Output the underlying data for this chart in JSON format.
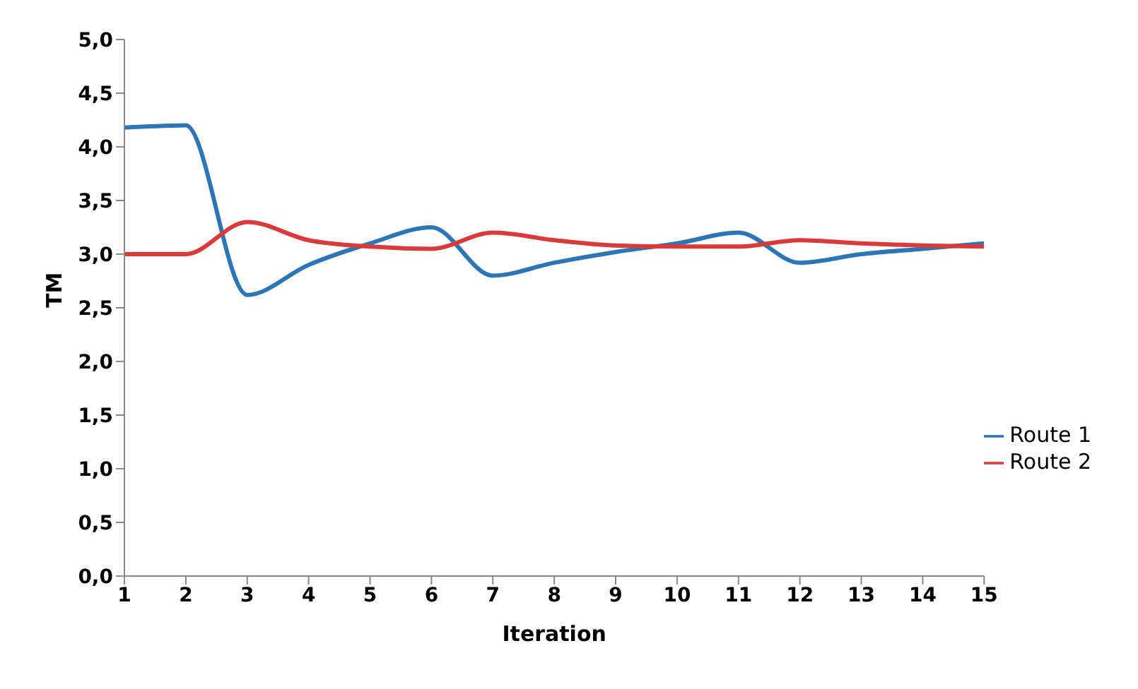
{
  "chart_data": {
    "type": "line",
    "xlabel": "Iteration",
    "ylabel": "TM",
    "x": [
      1,
      2,
      3,
      4,
      5,
      6,
      7,
      8,
      9,
      10,
      11,
      12,
      13,
      14,
      15
    ],
    "series": [
      {
        "name": "Route 1",
        "color": "#2e75b6",
        "values": [
          4.18,
          4.2,
          2.62,
          2.9,
          3.1,
          3.25,
          2.8,
          2.92,
          3.02,
          3.1,
          3.2,
          2.92,
          3.0,
          3.05,
          3.1
        ]
      },
      {
        "name": "Route 2",
        "color": "#d93a3a",
        "values": [
          3.0,
          3.0,
          3.3,
          3.13,
          3.07,
          3.05,
          3.2,
          3.13,
          3.08,
          3.07,
          3.07,
          3.13,
          3.1,
          3.08,
          3.07
        ]
      }
    ],
    "xlim": [
      1,
      15
    ],
    "xticks": [
      1,
      2,
      3,
      4,
      5,
      6,
      7,
      8,
      9,
      10,
      11,
      12,
      13,
      14,
      15
    ],
    "ylim": [
      0,
      5
    ],
    "yticks": [
      {
        "value": 0,
        "label": "0,0"
      },
      {
        "value": 0.5,
        "label": "0,5"
      },
      {
        "value": 1,
        "label": "1,0"
      },
      {
        "value": 1.5,
        "label": "1,5"
      },
      {
        "value": 2,
        "label": "2,0"
      },
      {
        "value": 2.5,
        "label": "2,5"
      },
      {
        "value": 3,
        "label": "3,0"
      },
      {
        "value": 3.5,
        "label": "3,5"
      },
      {
        "value": 4,
        "label": "4,0"
      },
      {
        "value": 4.5,
        "label": "4,5"
      },
      {
        "value": 5,
        "label": "5,0"
      }
    ],
    "legend": "right",
    "marker": "none",
    "line_style": "solid"
  }
}
